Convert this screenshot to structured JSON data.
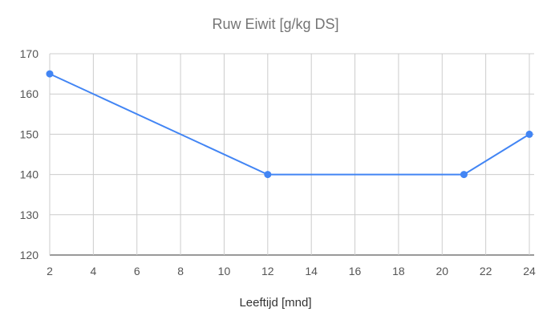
{
  "chart_data": {
    "type": "line",
    "title": "Ruw Eiwit [g/kg DS]",
    "xlabel": "Leeftijd [mnd]",
    "ylabel": "",
    "xlim": [
      2,
      24
    ],
    "ylim": [
      120,
      170
    ],
    "xticks": [
      2,
      4,
      6,
      8,
      10,
      12,
      14,
      16,
      18,
      20,
      22,
      24
    ],
    "yticks": [
      120,
      130,
      140,
      150,
      160,
      170
    ],
    "grid": true,
    "legend": "none",
    "series": [
      {
        "color": "#4285f4",
        "points": [
          {
            "x": 2,
            "y": 165
          },
          {
            "x": 12,
            "y": 140
          },
          {
            "x": 21,
            "y": 140
          },
          {
            "x": 24,
            "y": 150
          }
        ]
      }
    ]
  }
}
